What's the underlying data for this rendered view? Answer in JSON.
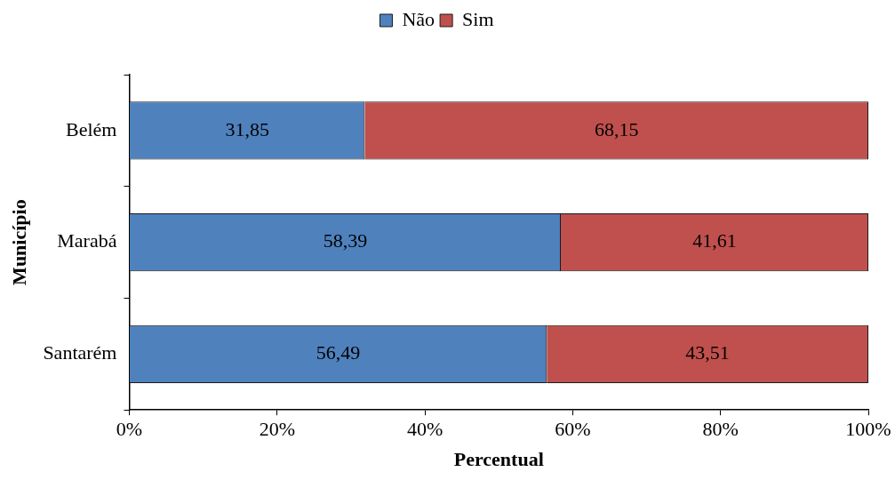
{
  "chart_data": {
    "type": "bar",
    "orientation": "horizontal",
    "stacked": true,
    "xlabel": "Percentual",
    "ylabel": "Município",
    "categories": [
      "Belém",
      "Marabá",
      "Santarém"
    ],
    "series": [
      {
        "name": "Não",
        "color": "#4f81bd",
        "values": [
          31.85,
          58.39,
          56.49
        ],
        "value_labels": [
          "31,85",
          "58,39",
          "56,49"
        ]
      },
      {
        "name": "Sim",
        "color": "#c0504d",
        "values": [
          68.15,
          41.61,
          43.51
        ],
        "value_labels": [
          "68,15",
          "41,61",
          "43,51"
        ]
      }
    ],
    "xlim": [
      0,
      100
    ],
    "xticks": [
      {
        "value": 0,
        "label": "0%"
      },
      {
        "value": 20,
        "label": "20%"
      },
      {
        "value": 40,
        "label": "40%"
      },
      {
        "value": 60,
        "label": "60%"
      },
      {
        "value": 80,
        "label": "80%"
      },
      {
        "value": 100,
        "label": "100%"
      }
    ],
    "grid": false,
    "legend": "top"
  }
}
